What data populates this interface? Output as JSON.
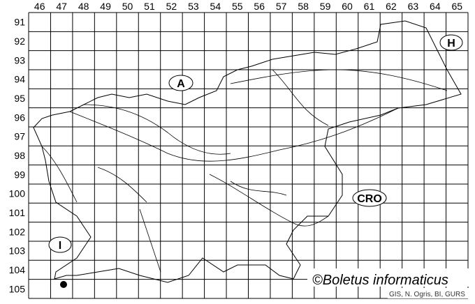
{
  "map": {
    "columns": [
      "46",
      "47",
      "48",
      "49",
      "50",
      "51",
      "52",
      "53",
      "54",
      "55",
      "56",
      "57",
      "58",
      "59",
      "60",
      "61",
      "62",
      "63",
      "64",
      "65"
    ],
    "rows": [
      "91",
      "92",
      "93",
      "94",
      "95",
      "96",
      "97",
      "98",
      "99",
      "100",
      "101",
      "102",
      "103",
      "104",
      "105"
    ],
    "country_labels": {
      "austria": "A",
      "hungary": "H",
      "croatia": "CRO",
      "italy": "I"
    },
    "record_points": [
      {
        "column": "47",
        "row": "105"
      }
    ],
    "line_color": "#000000",
    "point_color": "#000000"
  },
  "credit": "©Boletus informaticus",
  "source": "GIS, N. Ogris, BI, GURS"
}
